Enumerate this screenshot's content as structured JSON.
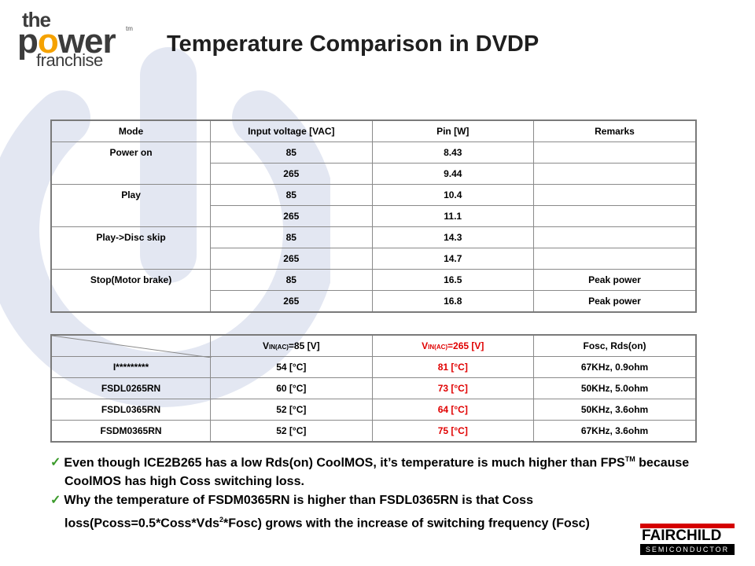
{
  "header": {
    "logo_the": "the",
    "logo_power_p": "p",
    "logo_power_o": "o",
    "logo_power_rest": "wer",
    "logo_tm": "tm",
    "logo_franchise": "franchise",
    "title": "Temperature Comparison in DVDP"
  },
  "table1": {
    "headers": [
      "Mode",
      "Input voltage [VAC]",
      "Pin [W]",
      "Remarks"
    ],
    "groups": [
      {
        "mode": "Power on",
        "rows": [
          [
            "85",
            "8.43",
            ""
          ],
          [
            "265",
            "9.44",
            ""
          ]
        ]
      },
      {
        "mode": "Play",
        "rows": [
          [
            "85",
            "10.4",
            ""
          ],
          [
            "265",
            "11.1",
            ""
          ]
        ]
      },
      {
        "mode": "Play->Disc skip",
        "rows": [
          [
            "85",
            "14.3",
            ""
          ],
          [
            "265",
            "14.7",
            ""
          ]
        ]
      },
      {
        "mode": "Stop(Motor brake)",
        "rows": [
          [
            "85",
            "16.5",
            "Peak power"
          ],
          [
            "265",
            "16.8",
            "Peak power"
          ]
        ]
      }
    ]
  },
  "table2": {
    "col1_v": "V",
    "col1_sub": "IN(AC)",
    "col1_rest": "=85 [V]",
    "col2_v": "V",
    "col2_sub": "IN(AC)",
    "col2_rest": "=265 [V]",
    "col3": "Fosc, Rds(on)",
    "rows": [
      [
        "I*********",
        "54 [°C]",
        "81 [°C]",
        "67KHz, 0.9ohm"
      ],
      [
        "FSDL0265RN",
        "60 [°C]",
        "73 [°C]",
        "50KHz, 5.0ohm"
      ],
      [
        "FSDL0365RN",
        "52 [°C]",
        "64 [°C]",
        "50KHz, 3.6ohm"
      ],
      [
        "FSDM0365RN",
        "52 [°C]",
        "75 [°C]",
        "67KHz, 3.6ohm"
      ]
    ]
  },
  "bullets": {
    "b1_a": "Even though ICE2B265 has a low Rds(on) CoolMOS, it’s temperature is much higher than FPS",
    "b1_sup": "TM",
    "b1_b": " because CoolMOS has high Coss switching loss.",
    "b2_a": "Why the temperature of FSDM0365RN is higher than FSDL0365RN is that Coss loss(Pcoss=0.5*Coss*Vds",
    "b2_sup": "2",
    "b2_b": "*Fosc) grows with  the increase of switching frequency (Fosc)"
  },
  "footer": {
    "brand": "FAIRCHILD",
    "brand_sub": "SEMICONDUCTOR"
  },
  "colors": {
    "accent_orange": "#f5a200",
    "red_text": "#e00000",
    "watermark": "#e3e7f2"
  }
}
